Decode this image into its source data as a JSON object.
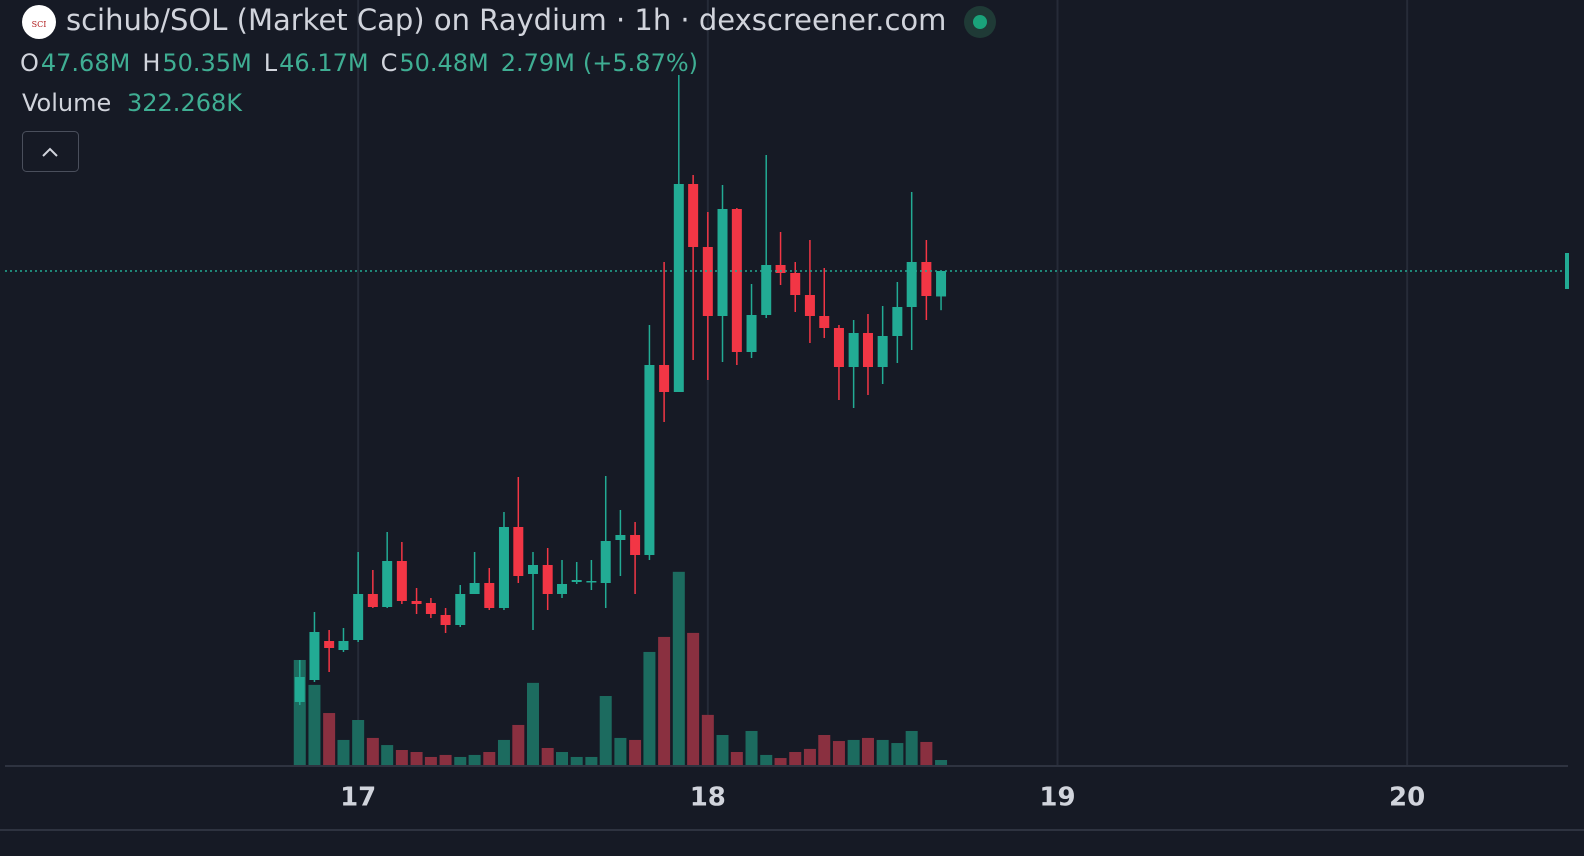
{
  "chart_data": {
    "type": "candlestick",
    "title": "scihub/SOL (Market Cap) on Raydium · 1h · dexscreener.com",
    "ohlc_legend": [
      {
        "key": "O",
        "value": {
          "value": 47.68,
          "label": "47.68M"
        }
      },
      {
        "key": "H",
        "value": {
          "value": 50.35,
          "label": "50.35M"
        }
      },
      {
        "key": "L",
        "value": {
          "value": 46.17,
          "label": "46.17M"
        }
      },
      {
        "key": "C",
        "value": {
          "value": 50.48,
          "label": "50.48M"
        }
      }
    ],
    "change": {
      "value": 2.79,
      "label": "2.79M"
    },
    "change_percent": {
      "value": 5.87,
      "label": "(+5.87%)"
    },
    "volume_legend": {
      "name": "Volume",
      "value": {
        "value": 322.268,
        "label": "322.268K"
      }
    },
    "x": [
      16.833,
      16.875,
      16.917,
      16.958,
      17,
      17.042,
      17.083,
      17.125,
      17.167,
      17.208,
      17.25,
      17.292,
      17.333,
      17.375,
      17.417,
      17.458,
      17.5,
      17.542,
      17.583,
      17.625,
      17.667,
      17.708,
      17.75,
      17.792,
      17.833,
      17.875,
      17.917,
      17.958,
      18,
      18.042,
      18.083,
      18.125,
      18.167,
      18.208,
      18.25,
      18.292,
      18.333,
      18.375,
      18.417,
      18.458,
      18.5,
      18.542,
      18.583,
      18.625,
      18.667
    ],
    "open": [
      3.07,
      5.49,
      9.78,
      8.79,
      9.89,
      14.95,
      13.52,
      18.58,
      14.18,
      13.96,
      12.64,
      11.54,
      14.95,
      16.16,
      13.41,
      22.32,
      17.15,
      18.14,
      14.95,
      16.27,
      16.27,
      16.16,
      20.89,
      21.44,
      19.24,
      40.14,
      37.17,
      60.05,
      53.12,
      45.53,
      57.3,
      41.57,
      45.64,
      51.14,
      50.26,
      47.84,
      45.53,
      44.21,
      39.92,
      43.66,
      39.92,
      43.33,
      46.52,
      51.47,
      47.68
    ],
    "high": [
      7.69,
      12.97,
      10.99,
      11.21,
      19.57,
      17.59,
      21.77,
      20.67,
      15.61,
      14.51,
      13.41,
      15.94,
      19.57,
      17.81,
      23.97,
      27.82,
      19.57,
      20.01,
      18.69,
      18.47,
      18.69,
      27.93,
      24.19,
      22.87,
      44.54,
      51.47,
      72.04,
      61.04,
      56.97,
      59.94,
      57.41,
      49.05,
      63.24,
      54.77,
      51.47,
      53.89,
      50.81,
      44.54,
      45.09,
      45.75,
      46.63,
      49.27,
      59.17,
      53.89,
      50.35
    ],
    "low": [
      2.74,
      5.27,
      6.37,
      8.57,
      9.67,
      13.41,
      13.41,
      13.85,
      12.75,
      12.31,
      10.66,
      11.32,
      14.95,
      13.19,
      13.19,
      16.16,
      10.99,
      13.19,
      14.51,
      16.05,
      15.39,
      13.41,
      16.93,
      14.95,
      18.69,
      33.87,
      37.17,
      40.69,
      38.49,
      40.47,
      40.14,
      40.91,
      45.31,
      48.94,
      45.97,
      42.56,
      43.11,
      36.29,
      35.41,
      36.84,
      38.05,
      40.36,
      41.79,
      45.09,
      46.17
    ],
    "close": [
      5.82,
      10.77,
      9.01,
      9.78,
      14.95,
      13.52,
      18.58,
      14.18,
      13.85,
      12.75,
      11.54,
      14.95,
      16.16,
      13.41,
      22.32,
      16.93,
      18.14,
      14.95,
      16.05,
      16.49,
      16.38,
      20.78,
      21.44,
      19.24,
      40.14,
      37.17,
      60.05,
      53.12,
      45.53,
      57.3,
      41.57,
      45.64,
      51.14,
      50.26,
      47.84,
      45.53,
      44.21,
      39.92,
      43.66,
      39.92,
      43.33,
      46.52,
      51.47,
      47.73,
      50.48
    ],
    "volume": [
      6790,
      5180,
      3360,
      1620,
      2910,
      1750,
      1290,
      970,
      840,
      520,
      650,
      520,
      650,
      840,
      1620,
      2590,
      5310,
      1100,
      840,
      520,
      520,
      4460,
      1750,
      1620,
      7310,
      8280,
      12490,
      8540,
      3240,
      1940,
      840,
      2200,
      650,
      450,
      840,
      1040,
      1940,
      1550,
      1620,
      1750,
      1620,
      1420,
      2200,
      1490,
      322.268
    ],
    "up_color": "#22ab94",
    "down_color": "#f23645",
    "volume_up_color": "#1c6b5f",
    "volume_down_color": "#8a3040",
    "xlim": [
      15.99,
      20.46
    ],
    "xticks": [
      17,
      18,
      19,
      20
    ],
    "ylim": [
      -3.86,
      80.29
    ],
    "volume_ylim": [
      0,
      15000
    ],
    "grid": true
  }
}
